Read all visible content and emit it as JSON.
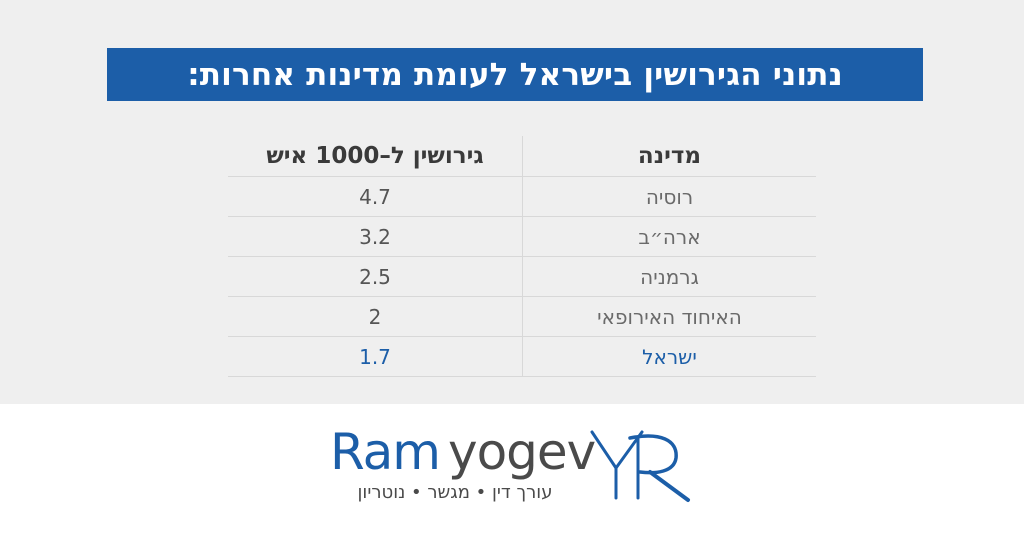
{
  "title": "נתוני הגירושין בישראל לעומת מדינות אחרות:",
  "table": {
    "headers": {
      "country": "מדינה",
      "rate": "גירושין ל–1000 איש"
    },
    "rows": [
      {
        "country": "רוסיה",
        "rate": "4.7"
      },
      {
        "country": "ארה״ב",
        "rate": "3.2"
      },
      {
        "country": "גרמניה",
        "rate": "2.5"
      },
      {
        "country": "האיחוד האירופאי",
        "rate": "2"
      },
      {
        "country": "ישראל",
        "rate": "1.7"
      }
    ]
  },
  "logo": {
    "first_name": "Ram",
    "last_name": "yogev",
    "monogram": "YR",
    "tagline": "עורך דין • מגשר • נוטריון"
  },
  "colors": {
    "brand_blue": "#1c5ea8",
    "panel_gray": "#efefef",
    "text_gray": "#4a4a4a"
  }
}
